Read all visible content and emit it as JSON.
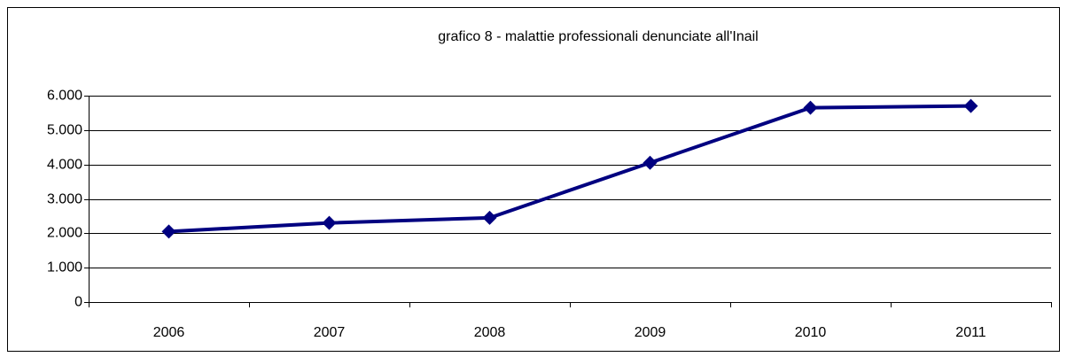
{
  "chart_data": {
    "type": "line",
    "title": "grafico 8 - malattie professionali denunciate all'Inail",
    "categories": [
      "2006",
      "2007",
      "2008",
      "2009",
      "2010",
      "2011"
    ],
    "series": [
      {
        "name": "malattie professionali",
        "color": "#000080",
        "values": [
          2050,
          2300,
          2450,
          4050,
          5650,
          5700
        ]
      }
    ],
    "ylim": [
      0,
      6000
    ],
    "yticks": [
      0,
      {
        "value": 1000,
        "label": "1.000"
      },
      {
        "value": 2000,
        "label": "2.000"
      },
      {
        "value": 3000,
        "label": "3.000"
      },
      {
        "value": 4000,
        "label": "4.000"
      },
      {
        "value": 5000,
        "label": "5.000"
      },
      {
        "value": 6000,
        "label": "6.000"
      }
    ],
    "grid": true
  }
}
